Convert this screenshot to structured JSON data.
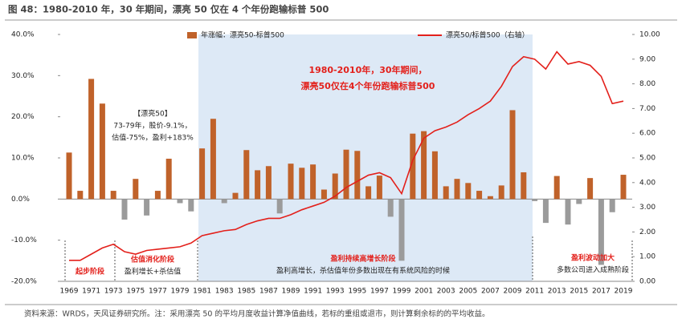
{
  "chart_data": {
    "type": "bar_line",
    "title": "图 48：1980-2010 年，30 年期间，漂亮 50 仅在 4 个年份跑输标普 500",
    "source": "资料来源：WRDS，天风证券研究所。注：采用漂亮 50 的平均月度收益计算净值曲线，若标的重组或退市，则计算剩余标的的平均收益。",
    "categories": [
      "1969",
      null,
      "1971",
      null,
      "1973",
      null,
      "1975",
      null,
      "1977",
      null,
      "1979",
      null,
      "1981",
      null,
      "1983",
      null,
      "1985",
      null,
      "1987",
      null,
      "1989",
      null,
      "1991",
      null,
      "1993",
      null,
      "1995",
      null,
      "1997",
      null,
      "1999",
      null,
      "2001",
      null,
      "2003",
      null,
      "2005",
      null,
      "2007",
      null,
      "2009",
      null,
      "2011",
      null,
      "2013",
      null,
      "2015",
      null,
      "2017",
      null,
      "2019"
    ],
    "series": [
      {
        "name": "年涨幅：漂亮50-标普500",
        "color": "#c0622a",
        "negative_color": "#9b9b9b",
        "values": [
          11.3,
          2,
          29.2,
          23.2,
          2,
          -5,
          4.9,
          -4,
          2,
          9.8,
          -1,
          -3,
          12.3,
          19.5,
          -1,
          1.5,
          11.9,
          7,
          8,
          -3.5,
          8.6,
          7.6,
          8.4,
          2.3,
          6.2,
          12,
          11.7,
          3.1,
          5.7,
          -4.3,
          -15,
          15.9,
          16.5,
          11.6,
          3.1,
          4.9,
          3.9,
          2,
          0.7,
          3.3,
          21.6,
          6.5,
          -0.5,
          -5.8,
          5.6,
          -6.2,
          -1.2,
          5.1,
          -16,
          -3.2,
          5.9
        ]
      },
      {
        "name": "漂亮50/标普500（右轴）",
        "color": "#e3201b",
        "axis": "y2",
        "values": [
          0.85,
          0.85,
          1.1,
          1.35,
          1.5,
          1.2,
          1.1,
          1.25,
          1.3,
          1.35,
          1.4,
          1.55,
          1.85,
          1.95,
          2.05,
          2.1,
          2.3,
          2.45,
          2.55,
          2.55,
          2.7,
          2.9,
          3.05,
          3.2,
          3.45,
          3.8,
          4.05,
          4.3,
          4.4,
          4.2,
          3.55,
          4.9,
          5.8,
          6.1,
          6.25,
          6.45,
          6.75,
          7.0,
          7.3,
          7.9,
          8.7,
          9.1,
          9.0,
          8.6,
          9.3,
          8.8,
          8.9,
          8.75,
          8.3,
          7.2,
          7.3
        ]
      }
    ],
    "ylim": [
      -20,
      40
    ],
    "yticks": [
      {
        "value": -20,
        "label": "-20.0%"
      },
      {
        "value": -10,
        "label": "-10.0%"
      },
      {
        "value": 0,
        "label": "0.0%"
      },
      {
        "value": 10,
        "label": "10.0%"
      },
      {
        "value": 20,
        "label": "20.0%"
      },
      {
        "value": 30,
        "label": "30.0%"
      },
      {
        "value": 40,
        "label": "40.0%"
      }
    ],
    "y2lim": [
      0,
      10
    ],
    "y2ticks": [
      {
        "value": 0,
        "label": "0.00"
      },
      {
        "value": 1,
        "label": "1.00"
      },
      {
        "value": 2,
        "label": "2.00"
      },
      {
        "value": 3,
        "label": "3.00"
      },
      {
        "value": 4,
        "label": "4.00"
      },
      {
        "value": 5,
        "label": "5.00"
      },
      {
        "value": 6,
        "label": "6.00"
      },
      {
        "value": 7,
        "label": "7.00"
      },
      {
        "value": 8,
        "label": "8.00"
      },
      {
        "value": 9,
        "label": "9.00"
      },
      {
        "value": 10,
        "label": "10.00"
      }
    ],
    "annotations": [
      "1980-2010年，30年期间，",
      "漂亮50仅在4个年份跑输标普500",
      "【漂亮50】",
      "73-79年，股价-9.1%，",
      "估值-75%，盈利+183%",
      "起步阶段",
      "估值消化阶段",
      "盈利增长+杀估值",
      "盈利持续高增长阶段",
      "盈利高增长，杀估值年份多数出现在有系统风险的时候",
      "盈利波动加大",
      "多数公司进入成熟阶段"
    ]
  }
}
